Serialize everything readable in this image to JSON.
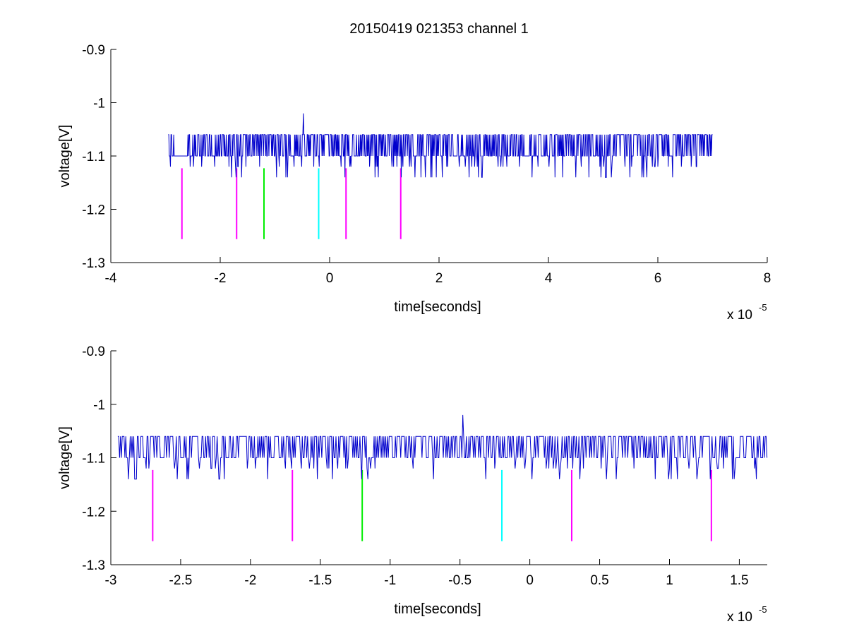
{
  "chart_data": [
    {
      "type": "line",
      "title": "20150419 021353 channel 1",
      "xlabel": "time[seconds]",
      "ylabel": "voltage[V]",
      "x_multiplier": "x 10",
      "x_exponent": "-5",
      "xlim": [
        -4,
        8
      ],
      "ylim": [
        -1.3,
        -0.9
      ],
      "xticks": [
        "-4",
        "-2",
        "0",
        "2",
        "4",
        "6",
        "8"
      ],
      "yticks": [
        "-0.9",
        "-1",
        "-1.1",
        "-1.2",
        "-1.3"
      ],
      "grid": false,
      "series": [
        {
          "color": "#0000cc",
          "x_start": -2.95,
          "x_end": 7.0,
          "baseline": -1.1,
          "levels": [
            -1.06,
            -1.1,
            -1.12,
            -1.14
          ],
          "spike": {
            "x": -0.48,
            "y": -1.02
          },
          "gaps": [
            [
              -2.85,
              -2.6
            ],
            [
              3.55,
              3.65
            ]
          ]
        }
      ],
      "markers": [
        {
          "x": -2.7,
          "y1": -1.123,
          "y2": -1.256,
          "color": "#ff00ff"
        },
        {
          "x": -1.7,
          "y1": -1.123,
          "y2": -1.256,
          "color": "#ff00ff"
        },
        {
          "x": -1.2,
          "y1": -1.123,
          "y2": -1.256,
          "color": "#00ee00"
        },
        {
          "x": -0.2,
          "y1": -1.123,
          "y2": -1.256,
          "color": "#00ffff"
        },
        {
          "x": 0.3,
          "y1": -1.123,
          "y2": -1.256,
          "color": "#ff00ff"
        },
        {
          "x": 1.3,
          "y1": -1.123,
          "y2": -1.256,
          "color": "#ff00ff"
        }
      ]
    },
    {
      "type": "line",
      "title": "",
      "xlabel": "time[seconds]",
      "ylabel": "voltage[V]",
      "x_multiplier": "x 10",
      "x_exponent": "-5",
      "xlim": [
        -3.0,
        1.7
      ],
      "ylim": [
        -1.3,
        -0.9
      ],
      "xticks": [
        "-3",
        "-2.5",
        "-2",
        "-1.5",
        "-1",
        "-0.5",
        "0",
        "0.5",
        "1",
        "1.5"
      ],
      "yticks": [
        "-0.9",
        "-1",
        "-1.1",
        "-1.2",
        "-1.3"
      ],
      "grid": false,
      "series": [
        {
          "color": "#0000cc",
          "x_start": -2.95,
          "x_end": 1.7,
          "baseline": -1.1,
          "levels": [
            -1.06,
            -1.1,
            -1.12,
            -1.14
          ],
          "spike": {
            "x": -0.48,
            "y": -1.02
          },
          "gaps": []
        }
      ],
      "markers": [
        {
          "x": -2.7,
          "y1": -1.123,
          "y2": -1.256,
          "color": "#ff00ff"
        },
        {
          "x": -1.7,
          "y1": -1.123,
          "y2": -1.256,
          "color": "#ff00ff"
        },
        {
          "x": -1.2,
          "y1": -1.123,
          "y2": -1.256,
          "color": "#00ee00"
        },
        {
          "x": -0.2,
          "y1": -1.123,
          "y2": -1.256,
          "color": "#00ffff"
        },
        {
          "x": 0.3,
          "y1": -1.123,
          "y2": -1.256,
          "color": "#ff00ff"
        },
        {
          "x": 1.3,
          "y1": -1.123,
          "y2": -1.256,
          "color": "#ff00ff"
        }
      ]
    }
  ]
}
